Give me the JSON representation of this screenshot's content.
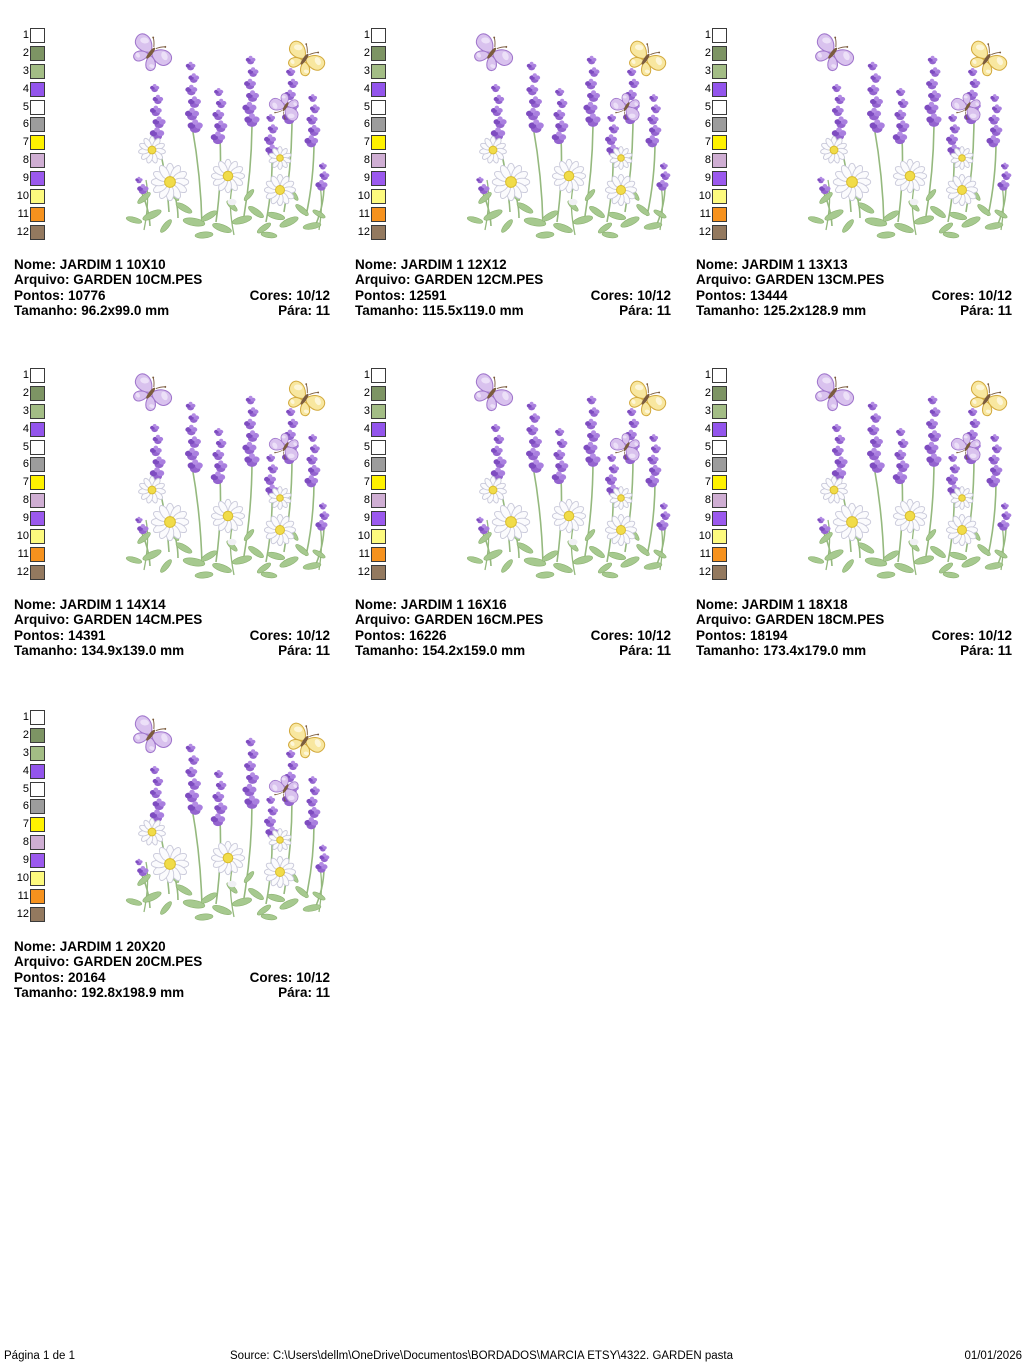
{
  "labels": {
    "nome": "Nome:",
    "arquivo": "Arquivo:",
    "pontos": "Pontos:",
    "cores": "Cores:",
    "tamanho": "Tamanho:",
    "para": "Pára:"
  },
  "palette": {
    "numbers": [
      "1",
      "2",
      "3",
      "4",
      "5",
      "6",
      "7",
      "8",
      "9",
      "10",
      "11",
      "12"
    ],
    "colors": [
      "#ffffff",
      "#7d9464",
      "#a3bd85",
      "#9355ec",
      "#ffffff",
      "#9c9c9c",
      "#fff200",
      "#cfaed3",
      "#9b59ee",
      "#fdfa7e",
      "#f6921e",
      "#93795f"
    ]
  },
  "designs": [
    {
      "name": "JARDIM 1 10X10",
      "file": "GARDEN 10CM.PES",
      "stitches": "10776",
      "colors": "10/12",
      "size": "96.2x99.0 mm",
      "stop": "11"
    },
    {
      "name": "JARDIM 1 12X12",
      "file": "GARDEN 12CM.PES",
      "stitches": "12591",
      "colors": "10/12",
      "size": "115.5x119.0 mm",
      "stop": "11"
    },
    {
      "name": "JARDIM 1 13X13",
      "file": "GARDEN 13CM.PES",
      "stitches": "13444",
      "colors": "10/12",
      "size": "125.2x128.9 mm",
      "stop": "11"
    },
    {
      "name": "JARDIM 1 14X14",
      "file": "GARDEN 14CM.PES",
      "stitches": "14391",
      "colors": "10/12",
      "size": "134.9x139.0 mm",
      "stop": "11"
    },
    {
      "name": "JARDIM 1 16X16",
      "file": "GARDEN 16CM.PES",
      "stitches": "16226",
      "colors": "10/12",
      "size": "154.2x159.0 mm",
      "stop": "11"
    },
    {
      "name": "JARDIM 1 18X18",
      "file": "GARDEN 18CM.PES",
      "stitches": "18194",
      "colors": "10/12",
      "size": "173.4x179.0 mm",
      "stop": "11"
    },
    {
      "name": "JARDIM 1 20X20",
      "file": "GARDEN 20CM.PES",
      "stitches": "20164",
      "colors": "10/12",
      "size": "192.8x198.9 mm",
      "stop": "11"
    }
  ],
  "footer": {
    "page_indicator": "Página 1 de 1",
    "source": "Source: C:\\Users\\dellm\\OneDrive\\Documentos\\BORDADOS\\MARCIA ETSY\\4322. GARDEN pasta",
    "date": "01/01/2026"
  },
  "design_colors": {
    "lavender_purple": "#9464cf",
    "daisy_petal": "#fbfbfd",
    "daisy_center": "#f1dc49",
    "leaf_green": "#a6c98f",
    "butterfly_lavender": "#d9c2ee",
    "butterfly_yellow": "#f8e7a0"
  }
}
